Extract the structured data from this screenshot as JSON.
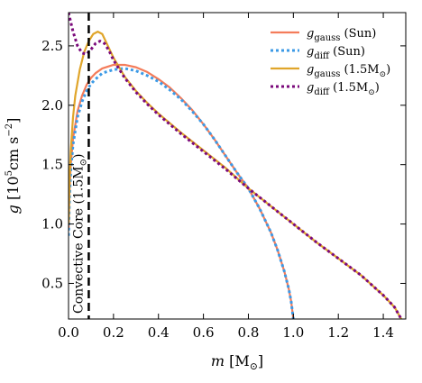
{
  "chart_data": {
    "type": "line",
    "xlabel": {
      "var": "m",
      "unit": "[M",
      "sub": "⊙",
      "close": "]"
    },
    "ylabel": {
      "var": "g",
      "pre": "[10",
      "exp": "5",
      "mid": "cm s",
      "exp2": "−2",
      "close": "]"
    },
    "xlim": [
      0.0,
      1.5
    ],
    "ylim": [
      0.2,
      2.78
    ],
    "xticks": [
      0.0,
      0.2,
      0.4,
      0.6,
      0.8,
      1.0,
      1.2,
      1.4
    ],
    "xtick_labels": [
      "0.0",
      "0.2",
      "0.4",
      "0.6",
      "0.8",
      "1.0",
      "1.2",
      "1.4"
    ],
    "yticks": [
      0.5,
      1.0,
      1.5,
      2.0,
      2.5
    ],
    "ytick_labels": [
      "0.5",
      "1.0",
      "1.5",
      "2.0",
      "2.5"
    ],
    "grid": false,
    "legend_position": "top-right",
    "annotation": {
      "text": "Convective Core (1.5M",
      "sub": "⊙",
      "close": ")",
      "x": 0.09,
      "line_color": "#000000"
    },
    "series": [
      {
        "var": "g",
        "sub": "gauss",
        "suffix": " (Sun)",
        "color": "#f47c5a",
        "dash": "solid",
        "x": [
          0.0,
          0.005,
          0.01,
          0.02,
          0.04,
          0.06,
          0.08,
          0.1,
          0.12,
          0.15,
          0.2,
          0.25,
          0.3,
          0.35,
          0.4,
          0.45,
          0.5,
          0.55,
          0.6,
          0.65,
          0.7,
          0.75,
          0.8,
          0.85,
          0.9,
          0.93,
          0.96,
          0.98,
          0.99,
          1.0
        ],
        "y": [
          0.95,
          1.3,
          1.5,
          1.72,
          1.95,
          2.08,
          2.17,
          2.23,
          2.27,
          2.31,
          2.34,
          2.34,
          2.32,
          2.28,
          2.22,
          2.15,
          2.06,
          1.96,
          1.84,
          1.71,
          1.57,
          1.43,
          1.3,
          1.13,
          0.93,
          0.78,
          0.6,
          0.45,
          0.35,
          0.2
        ]
      },
      {
        "var": "g",
        "sub": "diff",
        "suffix": " (Sun)",
        "color": "#3c9ae6",
        "dash": "dotted",
        "x": [
          0.0,
          0.005,
          0.01,
          0.02,
          0.04,
          0.06,
          0.08,
          0.1,
          0.12,
          0.15,
          0.2,
          0.25,
          0.3,
          0.35,
          0.4,
          0.45,
          0.5,
          0.55,
          0.6,
          0.65,
          0.7,
          0.75,
          0.8,
          0.85,
          0.9,
          0.93,
          0.96,
          0.98,
          0.99,
          1.0
        ],
        "y": [
          0.9,
          1.25,
          1.45,
          1.67,
          1.9,
          2.03,
          2.12,
          2.18,
          2.22,
          2.27,
          2.3,
          2.31,
          2.29,
          2.25,
          2.2,
          2.13,
          2.05,
          1.95,
          1.84,
          1.71,
          1.57,
          1.43,
          1.3,
          1.13,
          0.93,
          0.78,
          0.6,
          0.45,
          0.35,
          0.2
        ]
      },
      {
        "var": "g",
        "sub": "gauss",
        "suffix": " (1.5M",
        "suffix_sub": "⊙",
        "suffix_close": ")",
        "color": "#e0a52a",
        "dash": "solid",
        "x": [
          0.0,
          0.005,
          0.01,
          0.02,
          0.03,
          0.05,
          0.07,
          0.09,
          0.11,
          0.13,
          0.15,
          0.17,
          0.2,
          0.25,
          0.3,
          0.35,
          0.4,
          0.5,
          0.6,
          0.7,
          0.8,
          0.9,
          1.0,
          1.1,
          1.2,
          1.3,
          1.4,
          1.45,
          1.48
        ],
        "y": [
          1.0,
          1.4,
          1.62,
          1.9,
          2.08,
          2.3,
          2.45,
          2.54,
          2.6,
          2.62,
          2.6,
          2.52,
          2.4,
          2.24,
          2.12,
          2.02,
          1.93,
          1.77,
          1.62,
          1.47,
          1.3,
          1.15,
          1.0,
          0.85,
          0.71,
          0.57,
          0.4,
          0.3,
          0.2
        ]
      },
      {
        "var": "g",
        "sub": "diff",
        "suffix": " (1.5M",
        "suffix_sub": "⊙",
        "suffix_close": ")",
        "color": "#7b0a7b",
        "dash": "dotted",
        "x": [
          0.0,
          0.01,
          0.02,
          0.04,
          0.06,
          0.08,
          0.1,
          0.12,
          0.14,
          0.16,
          0.18,
          0.2,
          0.25,
          0.3,
          0.35,
          0.4,
          0.5,
          0.6,
          0.7,
          0.8,
          0.9,
          1.0,
          1.1,
          1.2,
          1.3,
          1.4,
          1.45,
          1.48
        ],
        "y": [
          2.78,
          2.7,
          2.62,
          2.5,
          2.44,
          2.43,
          2.47,
          2.52,
          2.54,
          2.52,
          2.46,
          2.38,
          2.23,
          2.11,
          2.01,
          1.92,
          1.76,
          1.61,
          1.46,
          1.3,
          1.15,
          1.0,
          0.85,
          0.71,
          0.57,
          0.4,
          0.3,
          0.2
        ]
      }
    ]
  }
}
